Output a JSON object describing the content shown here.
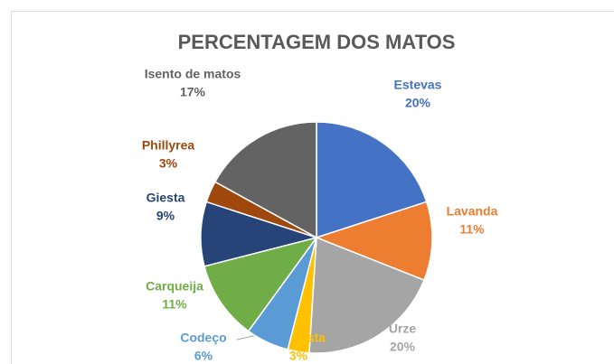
{
  "chart_data": {
    "type": "pie",
    "title": "PERCENTAGEM DOS MATOS",
    "categories": [
      "Estevas",
      "Lavanda",
      "Urze",
      "Magiesta",
      "Codeço",
      "Carqueija",
      "Giesta",
      "Phillyrea",
      "Isento de matos"
    ],
    "values": [
      20,
      11,
      20,
      3,
      6,
      11,
      9,
      3,
      17
    ],
    "value_labels": [
      "20%",
      "11%",
      "20%",
      "3%",
      "6%",
      "11%",
      "9%",
      "3%",
      "17%"
    ],
    "colors": [
      "#4472c4",
      "#ed7d31",
      "#a5a5a5",
      "#ffc000",
      "#5b9bd5",
      "#70ad47",
      "#264478",
      "#9e480e",
      "#636363"
    ]
  }
}
